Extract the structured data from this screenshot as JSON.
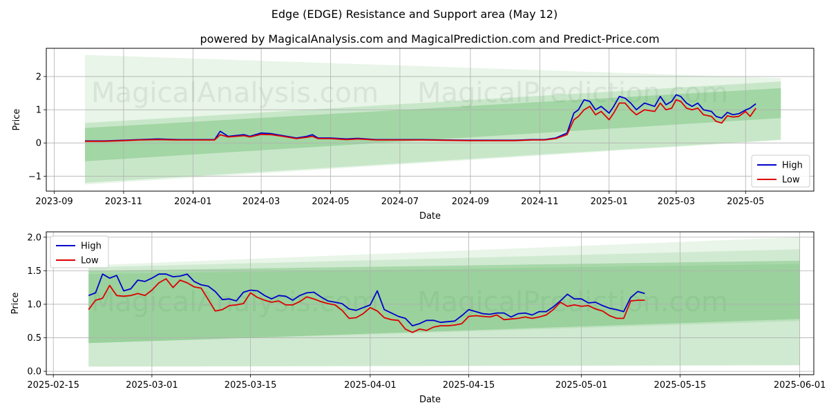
{
  "title": "Edge (EDGE) Resistance and Support area (May 12)",
  "subtitle": "powered by MagicalAnalysis.com and MagicalPrediction.com and Predict-Price.com",
  "watermark_left": "MagicalAnalysis.com",
  "watermark_right": "MagicalPrediction.com",
  "colors": {
    "high": "#0000cc",
    "low": "#dd0000",
    "band": "#4caf50",
    "grid": "#b0b0b0"
  },
  "chart_data": [
    {
      "type": "line",
      "xlabel": "Date",
      "ylabel": "Price",
      "xlim": [
        "2023-08-25",
        "2025-06-30"
      ],
      "ylim": [
        -1.45,
        2.85
      ],
      "x_ticks": [
        "2023-09",
        "2023-11",
        "2024-01",
        "2024-03",
        "2024-05",
        "2024-07",
        "2024-09",
        "2024-11",
        "2025-01",
        "2025-03",
        "2025-05"
      ],
      "y_ticks": [
        -1,
        0,
        1,
        2
      ],
      "grid": true,
      "legend": "lower-right",
      "bands": [
        {
          "x": [
            "2023-09-28",
            "2025-06-01"
          ],
          "upper": [
            2.65,
            1.95
          ],
          "lower": [
            -1.25,
            0.08
          ],
          "opacity": 0.13
        },
        {
          "x": [
            "2023-09-28",
            "2025-06-01"
          ],
          "upper": [
            0.6,
            1.85
          ],
          "lower": [
            -1.2,
            0.1
          ],
          "opacity": 0.2
        },
        {
          "x": [
            "2023-09-28",
            "2025-06-01"
          ],
          "upper": [
            0.45,
            1.65
          ],
          "lower": [
            -0.55,
            0.75
          ],
          "opacity": 0.3
        }
      ],
      "series": [
        {
          "name": "High",
          "x": [
            "2023-09-28",
            "2023-10-15",
            "2023-11-01",
            "2023-11-15",
            "2023-12-01",
            "2023-12-20",
            "2024-01-05",
            "2024-01-20",
            "2024-01-25",
            "2024-02-01",
            "2024-02-15",
            "2024-02-20",
            "2024-03-01",
            "2024-03-10",
            "2024-03-20",
            "2024-04-01",
            "2024-04-10",
            "2024-04-15",
            "2024-04-20",
            "2024-05-01",
            "2024-05-15",
            "2024-05-25",
            "2024-06-10",
            "2024-07-01",
            "2024-07-20",
            "2024-08-10",
            "2024-09-01",
            "2024-09-20",
            "2024-10-10",
            "2024-10-25",
            "2024-11-05",
            "2024-11-15",
            "2024-11-25",
            "2024-12-01",
            "2024-12-05",
            "2024-12-10",
            "2024-12-15",
            "2024-12-20",
            "2024-12-25",
            "2025-01-01",
            "2025-01-05",
            "2025-01-10",
            "2025-01-15",
            "2025-01-20",
            "2025-01-25",
            "2025-02-01",
            "2025-02-10",
            "2025-02-15",
            "2025-02-20",
            "2025-02-25",
            "2025-03-01",
            "2025-03-05",
            "2025-03-10",
            "2025-03-15",
            "2025-03-20",
            "2025-03-25",
            "2025-04-01",
            "2025-04-05",
            "2025-04-10",
            "2025-04-15",
            "2025-04-20",
            "2025-04-25",
            "2025-05-01",
            "2025-05-05",
            "2025-05-10"
          ],
          "values": [
            0.06,
            0.06,
            0.08,
            0.1,
            0.12,
            0.1,
            0.1,
            0.1,
            0.35,
            0.2,
            0.25,
            0.2,
            0.3,
            0.28,
            0.22,
            0.15,
            0.2,
            0.25,
            0.15,
            0.15,
            0.12,
            0.14,
            0.1,
            0.1,
            0.1,
            0.09,
            0.08,
            0.08,
            0.08,
            0.1,
            0.1,
            0.15,
            0.3,
            0.9,
            1.0,
            1.3,
            1.25,
            1.0,
            1.1,
            0.9,
            1.1,
            1.4,
            1.35,
            1.2,
            1.0,
            1.2,
            1.1,
            1.4,
            1.15,
            1.25,
            1.45,
            1.4,
            1.2,
            1.1,
            1.2,
            1.0,
            0.95,
            0.8,
            0.75,
            0.92,
            0.85,
            0.88,
            0.99,
            1.05,
            1.18
          ]
        },
        {
          "name": "Low",
          "x": [
            "2023-09-28",
            "2023-10-15",
            "2023-11-01",
            "2023-11-15",
            "2023-12-01",
            "2023-12-20",
            "2024-01-05",
            "2024-01-20",
            "2024-01-25",
            "2024-02-01",
            "2024-02-15",
            "2024-02-20",
            "2024-03-01",
            "2024-03-10",
            "2024-03-20",
            "2024-04-01",
            "2024-04-10",
            "2024-04-15",
            "2024-04-20",
            "2024-05-01",
            "2024-05-15",
            "2024-05-25",
            "2024-06-10",
            "2024-07-01",
            "2024-07-20",
            "2024-08-10",
            "2024-09-01",
            "2024-09-20",
            "2024-10-10",
            "2024-10-25",
            "2024-11-05",
            "2024-11-15",
            "2024-11-25",
            "2024-12-01",
            "2024-12-05",
            "2024-12-10",
            "2024-12-15",
            "2024-12-20",
            "2024-12-25",
            "2025-01-01",
            "2025-01-05",
            "2025-01-10",
            "2025-01-15",
            "2025-01-20",
            "2025-01-25",
            "2025-02-01",
            "2025-02-10",
            "2025-02-15",
            "2025-02-20",
            "2025-02-25",
            "2025-03-01",
            "2025-03-05",
            "2025-03-10",
            "2025-03-15",
            "2025-03-20",
            "2025-03-25",
            "2025-04-01",
            "2025-04-05",
            "2025-04-10",
            "2025-04-15",
            "2025-04-20",
            "2025-04-25",
            "2025-05-01",
            "2025-05-05",
            "2025-05-10"
          ],
          "values": [
            0.05,
            0.05,
            0.07,
            0.09,
            0.1,
            0.09,
            0.09,
            0.09,
            0.25,
            0.18,
            0.22,
            0.18,
            0.26,
            0.25,
            0.2,
            0.13,
            0.17,
            0.2,
            0.13,
            0.13,
            0.1,
            0.12,
            0.09,
            0.09,
            0.09,
            0.08,
            0.07,
            0.07,
            0.07,
            0.09,
            0.09,
            0.13,
            0.25,
            0.7,
            0.8,
            1.0,
            1.1,
            0.85,
            0.95,
            0.7,
            0.9,
            1.2,
            1.2,
            1.0,
            0.85,
            1.0,
            0.95,
            1.2,
            1.0,
            1.05,
            1.3,
            1.25,
            1.05,
            1.0,
            1.05,
            0.85,
            0.8,
            0.65,
            0.6,
            0.82,
            0.78,
            0.8,
            0.95,
            0.8,
            1.05
          ]
        }
      ]
    },
    {
      "type": "line",
      "xlabel": "Date",
      "ylabel": "Price",
      "xlim": [
        "2025-02-14",
        "2025-06-03"
      ],
      "ylim": [
        -0.05,
        2.08
      ],
      "x_ticks": [
        "2025-02-15",
        "2025-03-01",
        "2025-03-15",
        "2025-04-01",
        "2025-04-15",
        "2025-05-01",
        "2025-05-15",
        "2025-06-01"
      ],
      "y_ticks": [
        0.0,
        0.5,
        1.0,
        1.5,
        2.0
      ],
      "grid": true,
      "legend": "upper-left",
      "bands": [
        {
          "x": [
            "2025-02-20",
            "2025-06-01"
          ],
          "upper": [
            1.58,
            2.0
          ],
          "lower": [
            0.07,
            0.09
          ],
          "opacity": 0.13
        },
        {
          "x": [
            "2025-02-20",
            "2025-06-01"
          ],
          "upper": [
            1.55,
            1.82
          ],
          "lower": [
            0.07,
            0.09
          ],
          "opacity": 0.15
        },
        {
          "x": [
            "2025-02-20",
            "2025-06-01"
          ],
          "upper": [
            1.5,
            1.65
          ],
          "lower": [
            0.42,
            0.78
          ],
          "opacity": 0.3
        },
        {
          "x": [
            "2025-02-20",
            "2025-06-01"
          ],
          "upper": [
            1.45,
            1.6
          ],
          "lower": [
            0.42,
            0.75
          ],
          "opacity": 0.15
        }
      ],
      "series": [
        {
          "name": "High",
          "x": [
            "2025-02-20",
            "2025-02-21",
            "2025-02-22",
            "2025-02-23",
            "2025-02-24",
            "2025-02-25",
            "2025-02-26",
            "2025-02-27",
            "2025-02-28",
            "2025-03-01",
            "2025-03-02",
            "2025-03-03",
            "2025-03-04",
            "2025-03-05",
            "2025-03-06",
            "2025-03-07",
            "2025-03-08",
            "2025-03-09",
            "2025-03-10",
            "2025-03-11",
            "2025-03-12",
            "2025-03-13",
            "2025-03-14",
            "2025-03-15",
            "2025-03-16",
            "2025-03-17",
            "2025-03-18",
            "2025-03-19",
            "2025-03-20",
            "2025-03-21",
            "2025-03-22",
            "2025-03-23",
            "2025-03-24",
            "2025-03-25",
            "2025-03-26",
            "2025-03-27",
            "2025-03-28",
            "2025-03-29",
            "2025-03-30",
            "2025-03-31",
            "2025-04-01",
            "2025-04-02",
            "2025-04-03",
            "2025-04-04",
            "2025-04-05",
            "2025-04-06",
            "2025-04-07",
            "2025-04-08",
            "2025-04-09",
            "2025-04-10",
            "2025-04-11",
            "2025-04-12",
            "2025-04-13",
            "2025-04-14",
            "2025-04-15",
            "2025-04-16",
            "2025-04-17",
            "2025-04-18",
            "2025-04-19",
            "2025-04-20",
            "2025-04-21",
            "2025-04-22",
            "2025-04-23",
            "2025-04-24",
            "2025-04-25",
            "2025-04-26",
            "2025-04-27",
            "2025-04-28",
            "2025-04-29",
            "2025-04-30",
            "2025-05-01",
            "2025-05-02",
            "2025-05-03",
            "2025-05-04",
            "2025-05-05",
            "2025-05-06",
            "2025-05-07",
            "2025-05-08",
            "2025-05-09",
            "2025-05-10"
          ],
          "values": [
            1.13,
            1.17,
            1.45,
            1.39,
            1.43,
            1.2,
            1.23,
            1.36,
            1.34,
            1.39,
            1.45,
            1.45,
            1.41,
            1.42,
            1.45,
            1.34,
            1.29,
            1.27,
            1.19,
            1.07,
            1.08,
            1.05,
            1.18,
            1.21,
            1.2,
            1.13,
            1.08,
            1.13,
            1.12,
            1.06,
            1.13,
            1.17,
            1.18,
            1.11,
            1.05,
            1.03,
            1.01,
            0.93,
            0.91,
            0.95,
            0.99,
            1.2,
            0.92,
            0.87,
            0.82,
            0.79,
            0.68,
            0.71,
            0.76,
            0.76,
            0.73,
            0.74,
            0.75,
            0.83,
            0.92,
            0.89,
            0.86,
            0.85,
            0.87,
            0.87,
            0.81,
            0.86,
            0.87,
            0.84,
            0.89,
            0.89,
            0.96,
            1.05,
            1.15,
            1.08,
            1.08,
            1.02,
            1.03,
            0.98,
            0.94,
            0.92,
            0.89,
            1.1,
            1.19,
            1.16
          ]
        },
        {
          "name": "Low",
          "x": [
            "2025-02-20",
            "2025-02-21",
            "2025-02-22",
            "2025-02-23",
            "2025-02-24",
            "2025-02-25",
            "2025-02-26",
            "2025-02-27",
            "2025-02-28",
            "2025-03-01",
            "2025-03-02",
            "2025-03-03",
            "2025-03-04",
            "2025-03-05",
            "2025-03-06",
            "2025-03-07",
            "2025-03-08",
            "2025-03-09",
            "2025-03-10",
            "2025-03-11",
            "2025-03-12",
            "2025-03-13",
            "2025-03-14",
            "2025-03-15",
            "2025-03-16",
            "2025-03-17",
            "2025-03-18",
            "2025-03-19",
            "2025-03-20",
            "2025-03-21",
            "2025-03-22",
            "2025-03-23",
            "2025-03-24",
            "2025-03-25",
            "2025-03-26",
            "2025-03-27",
            "2025-03-28",
            "2025-03-29",
            "2025-03-30",
            "2025-03-31",
            "2025-04-01",
            "2025-04-02",
            "2025-04-03",
            "2025-04-04",
            "2025-04-05",
            "2025-04-06",
            "2025-04-07",
            "2025-04-08",
            "2025-04-09",
            "2025-04-10",
            "2025-04-11",
            "2025-04-12",
            "2025-04-13",
            "2025-04-14",
            "2025-04-15",
            "2025-04-16",
            "2025-04-17",
            "2025-04-18",
            "2025-04-19",
            "2025-04-20",
            "2025-04-21",
            "2025-04-22",
            "2025-04-23",
            "2025-04-24",
            "2025-04-25",
            "2025-04-26",
            "2025-04-27",
            "2025-04-28",
            "2025-04-29",
            "2025-04-30",
            "2025-05-01",
            "2025-05-02",
            "2025-05-03",
            "2025-05-04",
            "2025-05-05",
            "2025-05-06",
            "2025-05-07",
            "2025-05-08",
            "2025-05-09",
            "2025-05-10"
          ],
          "values": [
            0.92,
            1.06,
            1.09,
            1.28,
            1.13,
            1.12,
            1.13,
            1.16,
            1.13,
            1.21,
            1.32,
            1.38,
            1.25,
            1.36,
            1.32,
            1.26,
            1.24,
            1.07,
            0.9,
            0.92,
            0.98,
            0.99,
            1.01,
            1.17,
            1.1,
            1.06,
            1.03,
            1.05,
            0.99,
            0.99,
            1.04,
            1.11,
            1.08,
            1.04,
            1.01,
            0.99,
            0.91,
            0.79,
            0.8,
            0.86,
            0.95,
            0.9,
            0.8,
            0.77,
            0.76,
            0.63,
            0.58,
            0.63,
            0.61,
            0.66,
            0.68,
            0.68,
            0.69,
            0.71,
            0.82,
            0.83,
            0.82,
            0.81,
            0.84,
            0.77,
            0.78,
            0.79,
            0.81,
            0.79,
            0.81,
            0.84,
            0.92,
            1.03,
            0.97,
            0.99,
            0.97,
            0.98,
            0.93,
            0.9,
            0.83,
            0.79,
            0.79,
            1.05,
            1.06,
            1.06
          ]
        }
      ]
    }
  ]
}
